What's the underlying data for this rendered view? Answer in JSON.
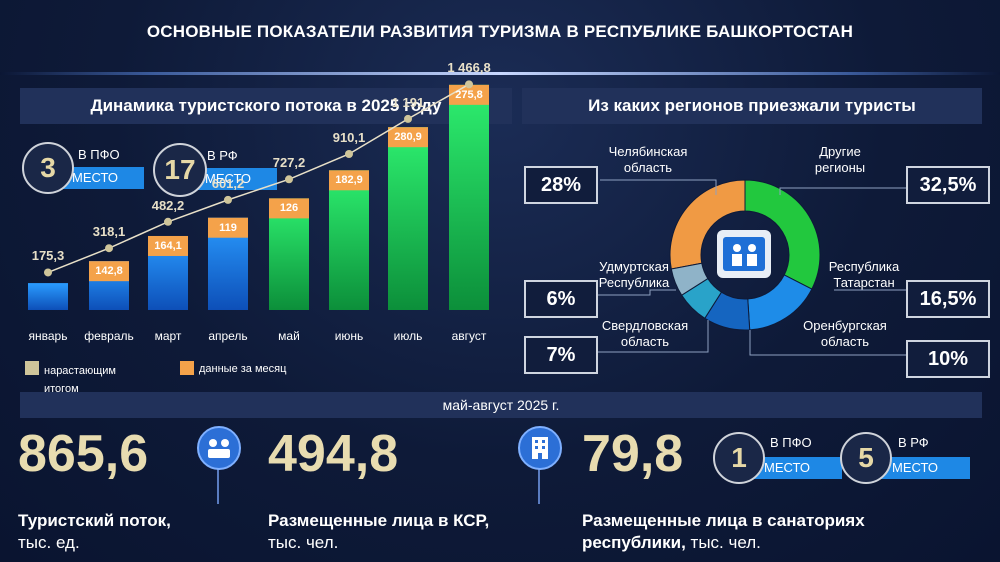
{
  "title": "ОСНОВНЫЕ ПОКАЗАТЕЛИ РАЗВИТИЯ ТУРИЗМА В РЕСПУБЛИКЕ БАШКОРТОСТАН",
  "left_section": {
    "header": "Динамика туристского потока в 2025 году",
    "ranks": [
      {
        "number": "3",
        "label": "В ПФО",
        "tag": "МЕСТО"
      },
      {
        "number": "17",
        "label": "В РФ",
        "tag": "МЕСТО"
      }
    ]
  },
  "right_section": {
    "header": "Из каких регионов приезжали туристы"
  },
  "chart_data": [
    {
      "type": "bar",
      "title": "Динамика туристского потока в 2025 году",
      "categories": [
        "январь",
        "февраль",
        "март",
        "апрель",
        "май",
        "июнь",
        "июль",
        "август"
      ],
      "series": [
        {
          "name": "нарастающим итогом",
          "values": [
            175.3,
            318.1,
            482.2,
            601.2,
            727.2,
            910.1,
            1191,
            1466.8
          ],
          "labels": [
            "175,3",
            "318,1",
            "482,2",
            "601,2",
            "727,2",
            "910,1",
            "1 191",
            "1 466,8"
          ]
        },
        {
          "name": "данные за месяц",
          "values": [
            null,
            142.8,
            164.1,
            119,
            126,
            182.9,
            280.9,
            275.8
          ],
          "labels": [
            "",
            "142,8",
            "164,1",
            "119",
            "126",
            "182,9",
            "280,9",
            "275,8"
          ]
        }
      ],
      "legend": [
        "нарастающим итогом",
        "данные за месяц"
      ],
      "colors": {
        "cumulative_marker": "#cfc59a",
        "monthly": "#f4a24a",
        "bar_blue": "#1f86e6",
        "bar_green": "#19d65a"
      }
    },
    {
      "type": "pie",
      "title": "Из каких регионов приезжали туристы",
      "slices": [
        {
          "name": "Челябинская область",
          "value": 28,
          "label": "28%",
          "color": "#f09a44"
        },
        {
          "name": "Другие регионы",
          "value": 32.5,
          "label": "32,5%",
          "color": "#22c83e"
        },
        {
          "name": "Республика Татарстан",
          "value": 16.5,
          "label": "16,5%",
          "color": "#1e8ce8"
        },
        {
          "name": "Оренбургская область",
          "value": 10,
          "label": "10%",
          "color": "#1565c0"
        },
        {
          "name": "Свердловская область",
          "value": 7,
          "label": "7%",
          "color": "#29a3c9"
        },
        {
          "name": "Удмуртская Республика",
          "value": 6,
          "label": "6%",
          "color": "#8fb3c8"
        }
      ]
    }
  ],
  "legend": {
    "cumulative": "нарастающим итогом",
    "monthly": "данные за месяц"
  },
  "regions": {
    "chelyabinsk": {
      "name": "Челябинская область",
      "pct": "28%"
    },
    "other": {
      "name": "Другие регионы",
      "pct": "32,5%"
    },
    "tatarstan": {
      "name": "Республика Татарстан",
      "pct": "16,5%"
    },
    "orenburg": {
      "name": "Оренбургская область",
      "pct": "10%"
    },
    "sverdlovsk": {
      "name": "Свердловская область",
      "pct": "7%"
    },
    "udmurt": {
      "name": "Удмуртская Республика",
      "pct": "6%"
    }
  },
  "bottom": {
    "period": "май-август 2025 г.",
    "stat1": {
      "value": "865,6",
      "label_bold": "Туристский поток,",
      "label_rest": "тыс. ед."
    },
    "stat2": {
      "value": "494,8",
      "label_bold": "Размещенные лица в КСР,",
      "label_rest": "тыс. чел."
    },
    "stat3": {
      "value": "79,8",
      "label_bold1": "Размещенные лица в санаториях",
      "label_bold2": "республики,",
      "label_rest": " тыс. чел."
    },
    "ranks": [
      {
        "number": "1",
        "label": "В ПФО",
        "tag": "МЕСТО"
      },
      {
        "number": "5",
        "label": "В РФ",
        "tag": "МЕСТО"
      }
    ]
  }
}
